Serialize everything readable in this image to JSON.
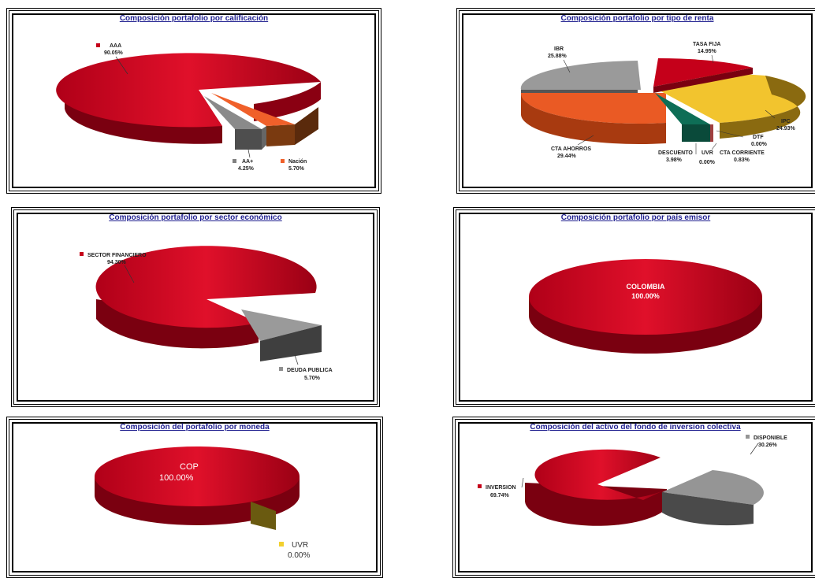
{
  "chart_data": [
    {
      "type": "pie",
      "title": "Composición portafolio por calificación",
      "slices": [
        {
          "label": "AAA",
          "value": 90.05,
          "display": "90.05%",
          "color": "#c5001a"
        },
        {
          "label": "AA+",
          "value": 4.25,
          "display": "4.25%",
          "color": "#808080"
        },
        {
          "label": "Nación",
          "value": 5.7,
          "display": "5.70%",
          "color": "#f0602a"
        }
      ]
    },
    {
      "type": "pie",
      "title": "Composición portafolio por tipo de renta",
      "slices": [
        {
          "label": "TASA FIJA",
          "value": 14.95,
          "display": "14.95%",
          "color": "#c5001a"
        },
        {
          "label": "IPC",
          "value": 24.93,
          "display": "24.93%",
          "color": "#f2c42e"
        },
        {
          "label": "DTF",
          "value": 0.0,
          "display": "0.00%",
          "color": "#2b5fa8"
        },
        {
          "label": "CTA CORRIENTE",
          "value": 0.83,
          "display": "0.83%",
          "color": "#a04040"
        },
        {
          "label": "UVR",
          "value": 0.0,
          "display": "0.00%",
          "color": "#8fb84a"
        },
        {
          "label": "DESCUENTO",
          "value": 3.98,
          "display": "3.98%",
          "color": "#0e6e56"
        },
        {
          "label": "CTA AHORROS",
          "value": 29.44,
          "display": "29.44%",
          "color": "#ea5a24"
        },
        {
          "label": "IBR",
          "value": 25.88,
          "display": "25.88%",
          "color": "#9a9a9a"
        }
      ]
    },
    {
      "type": "pie",
      "title": "Composición portafolio por sector económico",
      "slices": [
        {
          "label": "SECTOR FINANCIERO",
          "value": 94.3,
          "display": "94.30%",
          "color": "#c5001a"
        },
        {
          "label": "DEUDA PUBLICA",
          "value": 5.7,
          "display": "5.70%",
          "color": "#909090"
        }
      ]
    },
    {
      "type": "pie",
      "title": "Composición portafolio por país emisor",
      "slices": [
        {
          "label": "COLOMBIA",
          "value": 100.0,
          "display": "100.00%",
          "color": "#c5001a"
        }
      ]
    },
    {
      "type": "pie",
      "title": "Composición del portafolio por moneda",
      "slices": [
        {
          "label": "COP",
          "value": 100.0,
          "display": "100.00%",
          "color": "#c5001a"
        },
        {
          "label": "UVR",
          "value": 0.0,
          "display": "0.00%",
          "color": "#f2d02e"
        }
      ]
    },
    {
      "type": "pie",
      "title": "Composición del activo del fondo de inversion colectiva",
      "slices": [
        {
          "label": "INVERSION",
          "value": 69.74,
          "display": "69.74%",
          "color": "#c5001a"
        },
        {
          "label": "DISPONIBLE",
          "value": 30.26,
          "display": "30.26%",
          "color": "#959595"
        }
      ]
    }
  ]
}
